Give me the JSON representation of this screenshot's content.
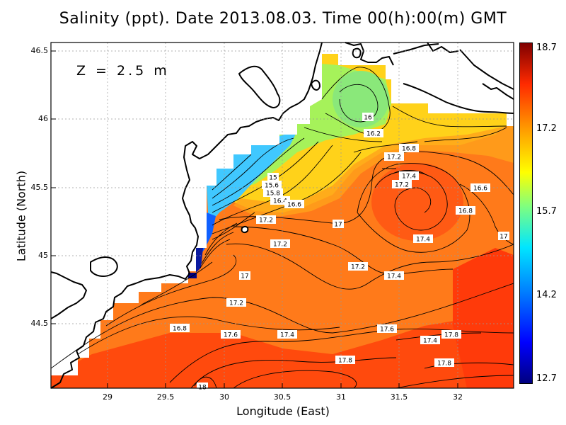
{
  "title": "Salinity (ppt). Date 2013.08.03. Time 00(h):00(m) GMT",
  "depth_label": "Z = 2.5 m",
  "axes": {
    "x_label": "Longitude (East)",
    "y_label": "Latitude (North)",
    "x_ticks": [
      "29",
      "29.5",
      "30",
      "30.5",
      "31",
      "31.5",
      "32"
    ],
    "y_ticks": [
      "46.5",
      "46",
      "45.5",
      "45",
      "44.5"
    ]
  },
  "colorbar": {
    "ticks": [
      "18.7",
      "17.2",
      "15.7",
      "14.2",
      "12.7"
    ],
    "colors": [
      "#00007f",
      "#0000ff",
      "#007fff",
      "#00e6ff",
      "#7fff7f",
      "#ffff00",
      "#ff9900",
      "#ff2a00",
      "#7f0000"
    ]
  },
  "contour_labels": [
    "16",
    "16.2",
    "16.8",
    "17.2",
    "17.4",
    "17.2",
    "15",
    "15.6",
    "15.8",
    "16.4",
    "16.6",
    "16.6",
    "16.8",
    "17.2",
    "17",
    "17.4",
    "17.2",
    "17",
    "17.2",
    "17.4",
    "17",
    "17.2",
    "16.8",
    "17.6",
    "17.4",
    "17.6",
    "17.4",
    "17.8",
    "17.8",
    "17.8",
    "18"
  ]
}
